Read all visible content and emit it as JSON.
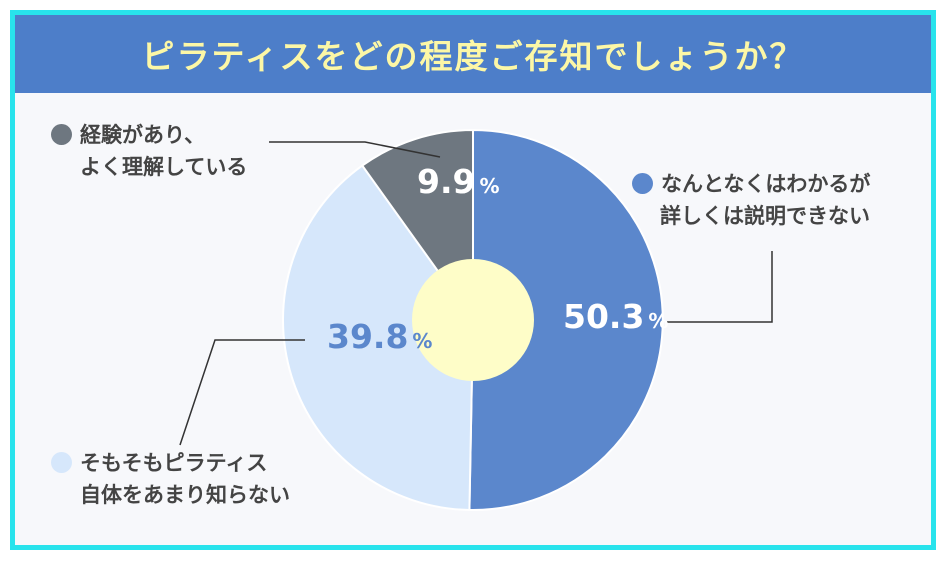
{
  "title": "ピラティスをどの程度ご存知でしょうか？",
  "colors": {
    "frame": "#28e3ec",
    "title_bg": "#4d7ec9",
    "title_text": "#fcf7a6",
    "center_hole": "#fefdc8"
  },
  "chart_data": {
    "type": "pie",
    "style": "donut",
    "unit": "%",
    "slices": [
      {
        "label_line1": "なんとなくはわかるが",
        "label_line2": "詳しくは説明できない",
        "value": 50.3,
        "value_text": "50.3",
        "color": "#5b87cc",
        "value_color": "#ffffff"
      },
      {
        "label_line1": "そもそもピラティス",
        "label_line2": "自体をあまり知らない",
        "value": 39.8,
        "value_text": "39.8",
        "color": "#d6e7fb",
        "value_color": "#5b87cc"
      },
      {
        "label_line1": "経験があり、",
        "label_line2": "よく理解している",
        "value": 9.9,
        "value_text": "9.9",
        "color": "#6e7780",
        "value_color": "#ffffff"
      }
    ]
  }
}
